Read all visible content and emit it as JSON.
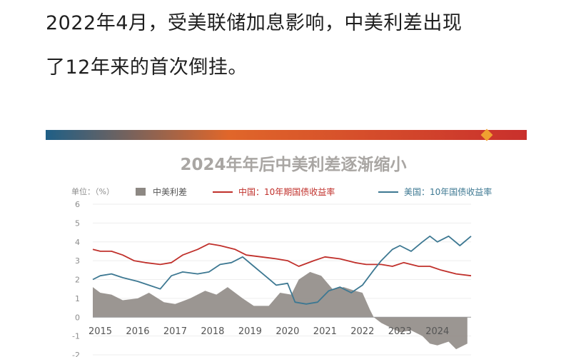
{
  "article": {
    "line1": "2022年4月，受美联储加息影响，中美利差出现",
    "line2": "了12年来的首次倒挂。"
  },
  "colors": {
    "spread": "#8d8883",
    "china": "#c0302b",
    "us": "#3d7892",
    "banner_start": "#1f5f86",
    "banner_mid": "#e0662a",
    "banner_end": "#c9302c",
    "diamond": "#f0a030"
  },
  "chart_data": {
    "type": "line",
    "title": "2024年年后中美利差逐渐缩小",
    "unit_label": "单位：（%）",
    "ylim": [
      -2,
      6
    ],
    "yticks": [
      "-2",
      "-1",
      "0",
      "1",
      "2",
      "3",
      "4",
      "5",
      "6"
    ],
    "x_range": [
      2014.8,
      2024.9
    ],
    "xticks": [
      "2015",
      "2016",
      "2017",
      "2018",
      "2019",
      "2020",
      "2021",
      "2022",
      "2023",
      "2024"
    ],
    "legend": [
      "中美利差",
      "中国：10年期国债收益率",
      "美国：10年国债收益率"
    ],
    "series": [
      {
        "name": "中美利差",
        "kind": "area",
        "x": [
          2014.8,
          2015.0,
          2015.3,
          2015.6,
          2016.0,
          2016.3,
          2016.7,
          2017.0,
          2017.4,
          2017.8,
          2018.1,
          2018.4,
          2018.8,
          2019.1,
          2019.5,
          2019.8,
          2020.1,
          2020.3,
          2020.6,
          2020.9,
          2021.2,
          2021.5,
          2021.8,
          2022.0,
          2022.2,
          2022.3,
          2022.5,
          2022.8,
          2023.0,
          2023.3,
          2023.6,
          2023.8,
          2024.0,
          2024.3,
          2024.5,
          2024.8
        ],
        "values": [
          1.6,
          1.3,
          1.2,
          0.9,
          1.0,
          1.3,
          0.8,
          0.7,
          1.0,
          1.4,
          1.2,
          1.6,
          1.0,
          0.6,
          0.6,
          1.3,
          1.2,
          2.0,
          2.4,
          2.2,
          1.5,
          1.6,
          1.4,
          1.3,
          0.4,
          0.0,
          -0.3,
          -0.6,
          -0.8,
          -0.7,
          -1.0,
          -1.4,
          -1.5,
          -1.3,
          -1.7,
          -1.4
        ]
      },
      {
        "name": "中国：10年期国债收益率",
        "kind": "line",
        "x": [
          2014.8,
          2015.0,
          2015.3,
          2015.6,
          2015.9,
          2016.2,
          2016.6,
          2016.9,
          2017.2,
          2017.6,
          2017.9,
          2018.2,
          2018.6,
          2018.9,
          2019.3,
          2019.7,
          2020.0,
          2020.3,
          2020.7,
          2021.0,
          2021.4,
          2021.8,
          2022.1,
          2022.5,
          2022.8,
          2023.1,
          2023.5,
          2023.8,
          2024.1,
          2024.5,
          2024.9
        ],
        "values": [
          3.6,
          3.5,
          3.5,
          3.3,
          3.0,
          2.9,
          2.8,
          2.9,
          3.3,
          3.6,
          3.9,
          3.8,
          3.6,
          3.3,
          3.2,
          3.1,
          3.0,
          2.7,
          3.0,
          3.2,
          3.1,
          2.9,
          2.8,
          2.8,
          2.7,
          2.9,
          2.7,
          2.7,
          2.5,
          2.3,
          2.2
        ]
      },
      {
        "name": "美国：10年国债收益率",
        "kind": "line",
        "x": [
          2014.8,
          2015.0,
          2015.3,
          2015.6,
          2016.0,
          2016.3,
          2016.6,
          2016.9,
          2017.2,
          2017.6,
          2017.9,
          2018.2,
          2018.5,
          2018.8,
          2019.1,
          2019.4,
          2019.7,
          2020.0,
          2020.2,
          2020.5,
          2020.8,
          2021.1,
          2021.4,
          2021.7,
          2022.0,
          2022.3,
          2022.5,
          2022.8,
          2023.0,
          2023.3,
          2023.6,
          2023.8,
          2024.0,
          2024.3,
          2024.6,
          2024.9
        ],
        "values": [
          2.0,
          2.2,
          2.3,
          2.1,
          1.9,
          1.7,
          1.5,
          2.2,
          2.4,
          2.3,
          2.4,
          2.8,
          2.9,
          3.2,
          2.7,
          2.2,
          1.7,
          1.8,
          0.8,
          0.7,
          0.8,
          1.4,
          1.6,
          1.3,
          1.7,
          2.5,
          3.0,
          3.6,
          3.8,
          3.5,
          4.0,
          4.3,
          4.0,
          4.3,
          3.8,
          4.3
        ]
      }
    ]
  }
}
